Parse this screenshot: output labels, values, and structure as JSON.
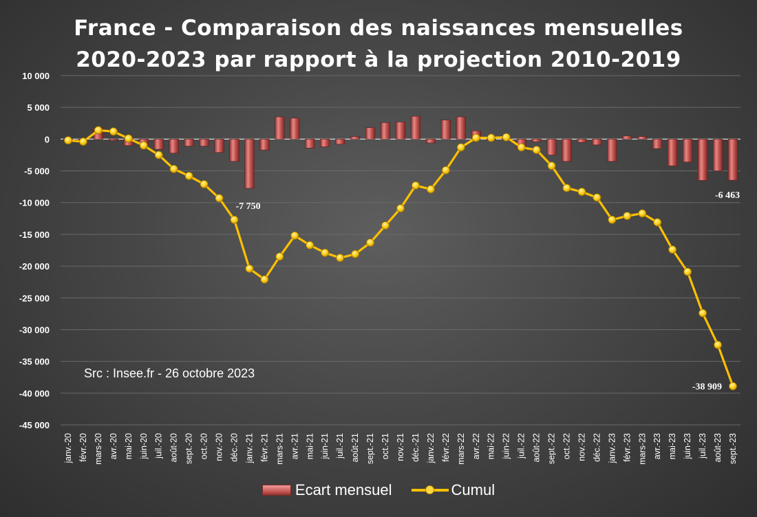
{
  "chart_data": {
    "type": "bar+line",
    "title_lines": [
      "France - Comparaison des naissances mensuelles",
      "2020-2023 par rapport à la projection 2010-2019"
    ],
    "source_note": "Src : Insee.fr - 26 octobre 2023",
    "categories": [
      "janv.-20",
      "févr.-20",
      "mars-20",
      "avr.-20",
      "mai-20",
      "juin-20",
      "juil.-20",
      "août-20",
      "sept.-20",
      "oct.-20",
      "nov.-20",
      "déc.-20",
      "janv.-21",
      "févr.-21",
      "mars-21",
      "avr.-21",
      "mai-21",
      "juin-21",
      "juil.-21",
      "août-21",
      "sept.-21",
      "oct.-21",
      "nov.-21",
      "déc.-21",
      "janv.-22",
      "févr.-22",
      "mars-22",
      "avr.-22",
      "mai-22",
      "juin-22",
      "juil.-22",
      "août-22",
      "sept.-22",
      "oct.-22",
      "nov.-22",
      "déc.-22",
      "janv.-23",
      "févr.-23",
      "mars-23",
      "avr.-23",
      "mai-23",
      "juin-23",
      "juil.-23",
      "août-23",
      "sept.-23"
    ],
    "series": [
      {
        "name": "Ecart mensuel",
        "kind": "bar",
        "color": "#c0504d",
        "values": [
          -200,
          -200,
          1800,
          -200,
          -1000,
          -1100,
          -1600,
          -2200,
          -1100,
          -1100,
          -2100,
          -3500,
          -7750,
          -1700,
          3500,
          3300,
          -1400,
          -1200,
          -800,
          400,
          1800,
          2600,
          2700,
          3600,
          -600,
          3000,
          3500,
          1300,
          -100,
          100,
          -1600,
          -400,
          -2500,
          -3500,
          -500,
          -900,
          -3500,
          500,
          400,
          -1500,
          -4200,
          -3600,
          -6500,
          -5000,
          -6463
        ]
      },
      {
        "name": "Cumul",
        "kind": "line",
        "color": "#ffc000",
        "values": [
          -200,
          -400,
          1400,
          1200,
          100,
          -1000,
          -2500,
          -4700,
          -5800,
          -7100,
          -9300,
          -12700,
          -20400,
          -22100,
          -18500,
          -15200,
          -16700,
          -17900,
          -18700,
          -18100,
          -16300,
          -13600,
          -10900,
          -7300,
          -7900,
          -4900,
          -1300,
          200,
          200,
          300,
          -1300,
          -1700,
          -4200,
          -7700,
          -8300,
          -9200,
          -12700,
          -12100,
          -11700,
          -13100,
          -17400,
          -20900,
          -27400,
          -32400,
          -38909
        ]
      }
    ],
    "data_labels": [
      {
        "series": "Ecart mensuel",
        "index": 12,
        "text": "-7 750"
      },
      {
        "series": "Ecart mensuel",
        "index": 44,
        "text": "-6 463"
      },
      {
        "series": "Cumul",
        "index": 44,
        "text": "-38 909"
      }
    ],
    "ylim": [
      -45000,
      10000
    ],
    "yticks": [
      10000,
      5000,
      0,
      -5000,
      -10000,
      -15000,
      -20000,
      -25000,
      -30000,
      -35000,
      -40000,
      -45000
    ],
    "ytick_labels": [
      "10 000",
      "5 000",
      "0",
      "-5 000",
      "-10 000",
      "-15 000",
      "-20 000",
      "-25 000",
      "-30 000",
      "-35 000",
      "-40 000",
      "-45 000"
    ],
    "grid": true,
    "legend_position": "bottom",
    "colors": {
      "background": "#474747",
      "bar": "#c0504d",
      "line": "#ffc000",
      "grid": "#6a6a6a",
      "text": "#ffffff"
    }
  }
}
